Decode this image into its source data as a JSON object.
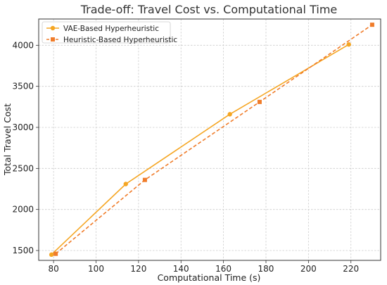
{
  "chart_data": {
    "type": "line",
    "title": "Trade-off: Travel Cost vs. Computational Time",
    "xlabel": "Computational Time (s)",
    "ylabel": "Total Travel Cost",
    "xlim": [
      73,
      234
    ],
    "ylim": [
      1380,
      4320
    ],
    "xticks": [
      80,
      100,
      120,
      140,
      160,
      180,
      200,
      220
    ],
    "yticks": [
      1500,
      2000,
      2500,
      3000,
      3500,
      4000
    ],
    "grid": true,
    "legend_position": "top-left",
    "series": [
      {
        "name": "VAE-Based Hyperheuristic",
        "color": "#f5a623",
        "line_style": "solid",
        "marker": "circle",
        "x": [
          79,
          114,
          163,
          219
        ],
        "y": [
          1450,
          2310,
          3160,
          4010
        ]
      },
      {
        "name": "Heuristic-Based Hyperheuristic",
        "color": "#f07c2a",
        "line_style": "dashed",
        "marker": "square",
        "x": [
          81,
          123,
          177,
          230
        ],
        "y": [
          1460,
          2360,
          3310,
          4250
        ]
      }
    ]
  }
}
